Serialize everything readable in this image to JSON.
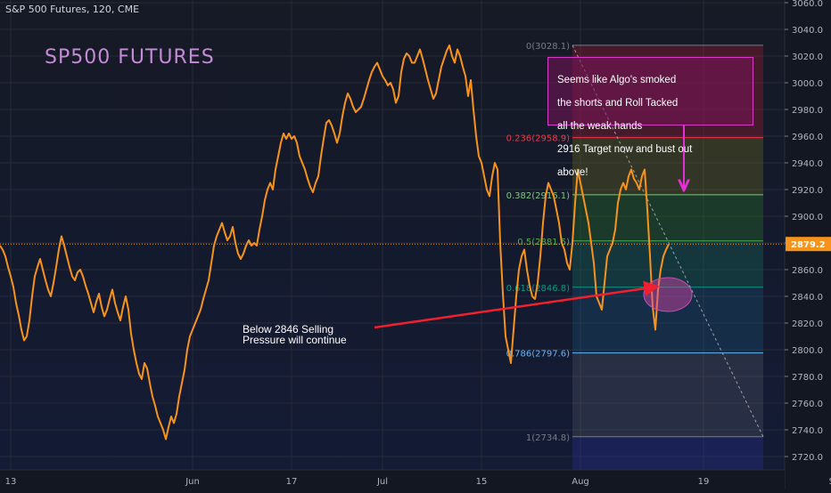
{
  "header": {
    "symbol_text": "S&P 500 Futures, 120, CME"
  },
  "annotations": {
    "title": "SP500 FUTURES",
    "note_top": [
      "Seems like Algo's smoked",
      "the shorts and Roll Tacked",
      "all the weak hands",
      "2916 Target now and bust out",
      "above!"
    ],
    "note_bottom": [
      "Below 2846 Selling",
      "Pressure will continue"
    ]
  },
  "colors": {
    "background": "#131722",
    "price_line": "#f7931a",
    "arrow_red": "#f0202e",
    "arrow_magenta": "#e62ed6",
    "last_price_badge": "#f7931a",
    "grid": "#2a2e39"
  },
  "chart_data": {
    "type": "line",
    "title": "",
    "ylim": [
      2710,
      3062
    ],
    "y_ticks": [
      3060,
      3040,
      3020,
      3000,
      2980,
      2960,
      2940,
      2920,
      2900,
      2880,
      2860,
      2840,
      2820,
      2800,
      2780,
      2760,
      2740,
      2720
    ],
    "y_tick_labels": [
      "3060.0",
      "3040.0",
      "3020.0",
      "3000.0",
      "2980.0",
      "2960.0",
      "2940.0",
      "2920.0",
      "2900.0",
      "2880.0",
      "2860.0",
      "2840.0",
      "2820.0",
      "2800.0",
      "2780.0",
      "2760.0",
      "2740.0",
      "2720.0"
    ],
    "x_tick_labels": [
      "13",
      "Jun",
      "17",
      "Jul",
      "15",
      "Aug",
      "19",
      "Sep"
    ],
    "x_tick_index": [
      4,
      72,
      109,
      143,
      180,
      217,
      263,
      313
    ],
    "last_price": 2879.2,
    "last_price_label": "2879.2",
    "series": [
      {
        "values": [
          2878,
          2875,
          2870,
          2862,
          2855,
          2847,
          2835,
          2826,
          2815,
          2807,
          2810,
          2822,
          2840,
          2855,
          2862,
          2868,
          2860,
          2852,
          2845,
          2840,
          2850,
          2862,
          2875,
          2885,
          2878,
          2870,
          2862,
          2855,
          2852,
          2858,
          2860,
          2855,
          2848,
          2842,
          2835,
          2828,
          2836,
          2842,
          2832,
          2825,
          2830,
          2838,
          2845,
          2835,
          2828,
          2822,
          2832,
          2840,
          2830,
          2812,
          2800,
          2790,
          2782,
          2778,
          2790,
          2786,
          2775,
          2765,
          2758,
          2750,
          2745,
          2740,
          2733,
          2742,
          2750,
          2745,
          2752,
          2765,
          2775,
          2785,
          2800,
          2810,
          2815,
          2820,
          2825,
          2830,
          2838,
          2845,
          2852,
          2865,
          2878,
          2885,
          2890,
          2895,
          2888,
          2882,
          2885,
          2892,
          2880,
          2872,
          2868,
          2872,
          2878,
          2882,
          2878,
          2880,
          2878,
          2890,
          2900,
          2912,
          2920,
          2925,
          2920,
          2935,
          2945,
          2955,
          2962,
          2958,
          2962,
          2958,
          2960,
          2955,
          2945,
          2940,
          2935,
          2928,
          2922,
          2918,
          2925,
          2930,
          2945,
          2958,
          2970,
          2972,
          2968,
          2962,
          2955,
          2962,
          2975,
          2985,
          2992,
          2988,
          2982,
          2978,
          2980,
          2982,
          2988,
          2995,
          3002,
          3008,
          3012,
          3015,
          3010,
          3005,
          3002,
          2998,
          3000,
          2995,
          2985,
          2990,
          3008,
          3018,
          3022,
          3020,
          3015,
          3015,
          3020,
          3025,
          3018,
          3010,
          3002,
          2995,
          2988,
          2992,
          3002,
          3012,
          3018,
          3024,
          3028,
          3020,
          3015,
          3025,
          3020,
          3012,
          3005,
          2990,
          3002,
          2980,
          2960,
          2945,
          2940,
          2930,
          2920,
          2915,
          2930,
          2940,
          2935,
          2880,
          2842,
          2810,
          2800,
          2790,
          2815,
          2840,
          2860,
          2870,
          2875,
          2860,
          2848,
          2840,
          2838,
          2850,
          2870,
          2895,
          2915,
          2925,
          2920,
          2915,
          2905,
          2895,
          2880,
          2875,
          2865,
          2860,
          2880,
          2910,
          2935,
          2925,
          2915,
          2905,
          2895,
          2880,
          2865,
          2840,
          2835,
          2830,
          2850,
          2870,
          2875,
          2880,
          2890,
          2910,
          2920,
          2925,
          2920,
          2930,
          2935,
          2928,
          2925,
          2920,
          2930,
          2935,
          2905,
          2870,
          2832,
          2815,
          2845,
          2860,
          2870,
          2875,
          2879
        ]
      }
    ],
    "fib_levels": [
      {
        "ratio_label": "0(3028.1)",
        "value": 3028.1,
        "color": "#787b86"
      },
      {
        "ratio_label": "0.236(2958.9)",
        "value": 2958.9,
        "color": "#f23645"
      },
      {
        "ratio_label": "0.382(2916.1)",
        "value": 2916.1,
        "color": "#81c784"
      },
      {
        "ratio_label": "0.5(2881.5)",
        "value": 2881.5,
        "color": "#4caf50"
      },
      {
        "ratio_label": "0.618(2846.8)",
        "value": 2846.8,
        "color": "#089981"
      },
      {
        "ratio_label": "0.786(2797.6)",
        "value": 2797.6,
        "color": "#64b5f6"
      },
      {
        "ratio_label": "1(2734.8)",
        "value": 2734.8,
        "color": "#787b86"
      }
    ]
  }
}
